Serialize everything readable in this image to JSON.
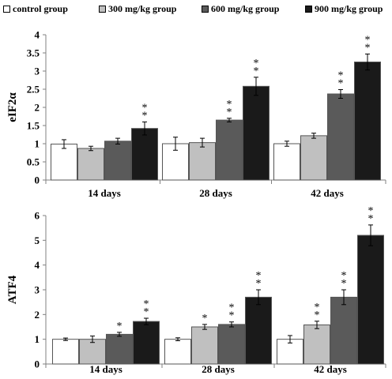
{
  "legend": [
    {
      "label": "control group",
      "color": "#ffffff"
    },
    {
      "label": "300 mg/kg group",
      "color": "#c0c0c0"
    },
    {
      "label": "600 mg/kg group",
      "color": "#5a5a5a"
    },
    {
      "label": "900 mg/kg group",
      "color": "#1a1a1a"
    }
  ],
  "chart_data": [
    {
      "type": "bar",
      "ylabel": "eIF2α",
      "ylim": [
        0,
        4
      ],
      "yticks": [
        "0",
        "0.5",
        "1",
        "1.5",
        "2",
        "2.5",
        "3",
        "3.5",
        "4"
      ],
      "categories": [
        "14 days",
        "28 days",
        "42 days"
      ],
      "grid": false,
      "legend_position": "top",
      "series": [
        {
          "name": "control group",
          "color": "#ffffff",
          "values": [
            0.99,
            1.0,
            1.0
          ],
          "errors": [
            0.12,
            0.18,
            0.07
          ],
          "annotations": [
            "",
            "",
            ""
          ]
        },
        {
          "name": "300 mg/kg group",
          "color": "#c0c0c0",
          "values": [
            0.87,
            1.03,
            1.22
          ],
          "errors": [
            0.06,
            0.12,
            0.07
          ],
          "annotations": [
            "",
            "",
            ""
          ]
        },
        {
          "name": "600 mg/kg group",
          "color": "#5a5a5a",
          "values": [
            1.07,
            1.65,
            2.37
          ],
          "errors": [
            0.08,
            0.05,
            0.12
          ],
          "annotations": [
            "",
            "**",
            "**"
          ]
        },
        {
          "name": "900 mg/kg group",
          "color": "#1a1a1a",
          "values": [
            1.42,
            2.58,
            3.25
          ],
          "errors": [
            0.18,
            0.25,
            0.22
          ],
          "annotations": [
            "**",
            "**",
            "**"
          ]
        }
      ]
    },
    {
      "type": "bar",
      "ylabel": "ATF4",
      "ylim": [
        0,
        6
      ],
      "yticks": [
        "0",
        "1",
        "2",
        "3",
        "4",
        "5",
        "6"
      ],
      "categories": [
        "14 days",
        "28 days",
        "42 days"
      ],
      "grid": false,
      "series": [
        {
          "name": "control group",
          "color": "#ffffff",
          "values": [
            1.0,
            1.0,
            1.0
          ],
          "errors": [
            0.05,
            0.06,
            0.15
          ],
          "annotations": [
            "",
            "",
            ""
          ]
        },
        {
          "name": "300 mg/kg group",
          "color": "#c0c0c0",
          "values": [
            1.0,
            1.5,
            1.58
          ],
          "errors": [
            0.13,
            0.1,
            0.15
          ],
          "annotations": [
            "",
            "*",
            "**"
          ]
        },
        {
          "name": "600 mg/kg group",
          "color": "#5a5a5a",
          "values": [
            1.2,
            1.6,
            2.7
          ],
          "errors": [
            0.08,
            0.1,
            0.3
          ],
          "annotations": [
            "*",
            "**",
            "**"
          ]
        },
        {
          "name": "900 mg/kg group",
          "color": "#1a1a1a",
          "values": [
            1.72,
            2.7,
            5.2
          ],
          "errors": [
            0.13,
            0.3,
            0.42
          ],
          "annotations": [
            "**",
            "**",
            "**"
          ]
        }
      ]
    }
  ]
}
